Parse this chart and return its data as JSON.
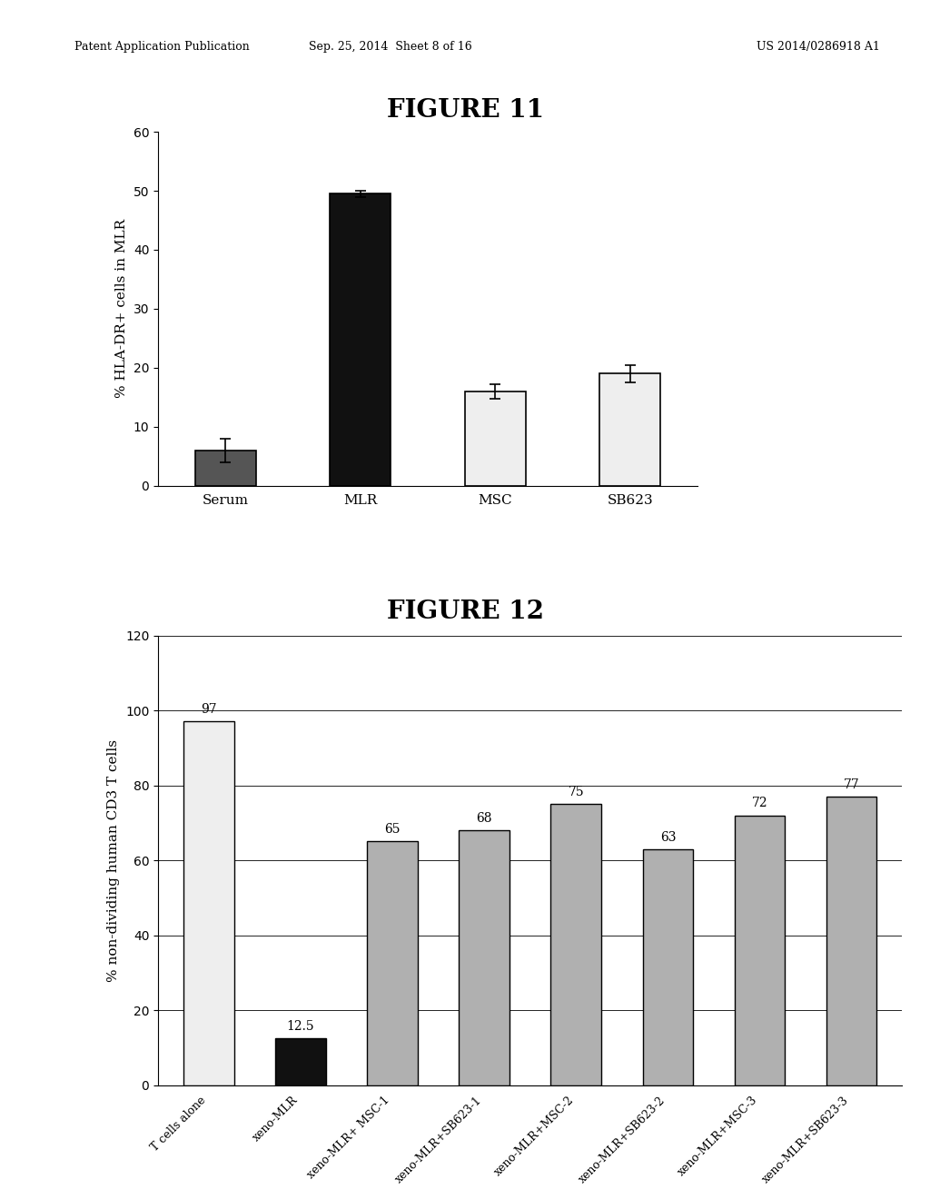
{
  "fig11": {
    "title": "FIGURE 11",
    "categories": [
      "Serum",
      "MLR",
      "MSC",
      "SB623"
    ],
    "values": [
      6.0,
      49.5,
      16.0,
      19.0
    ],
    "errors": [
      2.0,
      0.5,
      1.2,
      1.5
    ],
    "colors": [
      "#555555",
      "#111111",
      "#eeeeee",
      "#eeeeee"
    ],
    "edge_colors": [
      "#000000",
      "#000000",
      "#000000",
      "#000000"
    ],
    "ylabel": "% HLA-DR+ cells in MLR",
    "ylim": [
      0,
      60
    ],
    "yticks": [
      0,
      10,
      20,
      30,
      40,
      50,
      60
    ]
  },
  "fig12": {
    "title": "FIGURE 12",
    "categories": [
      "T cells alone",
      "xeno-MLR",
      "xeno-MLR+ MSC-1",
      "xeno-MLR+SB623-1",
      "xeno-MLR+MSC-2",
      "xeno-MLR+SB623-2",
      "xeno-MLR+MSC-3",
      "xeno-MLR+SB623-3"
    ],
    "values": [
      97,
      12.5,
      65,
      68,
      75,
      63,
      72,
      77
    ],
    "labels": [
      "97",
      "12.5",
      "65",
      "68",
      "75",
      "63",
      "72",
      "77"
    ],
    "colors": [
      "#eeeeee",
      "#111111",
      "#b0b0b0",
      "#b0b0b0",
      "#b0b0b0",
      "#b0b0b0",
      "#b0b0b0",
      "#b0b0b0"
    ],
    "edge_colors": [
      "#000000",
      "#000000",
      "#000000",
      "#000000",
      "#000000",
      "#000000",
      "#000000",
      "#000000"
    ],
    "ylabel": "% non-dividing human CD3 T cells",
    "ylim": [
      0,
      120
    ],
    "yticks": [
      0,
      20,
      40,
      60,
      80,
      100,
      120
    ]
  },
  "header_left": "Patent Application Publication",
  "header_mid": "Sep. 25, 2014  Sheet 8 of 16",
  "header_right": "US 2014/0286918 A1",
  "background_color": "#ffffff"
}
